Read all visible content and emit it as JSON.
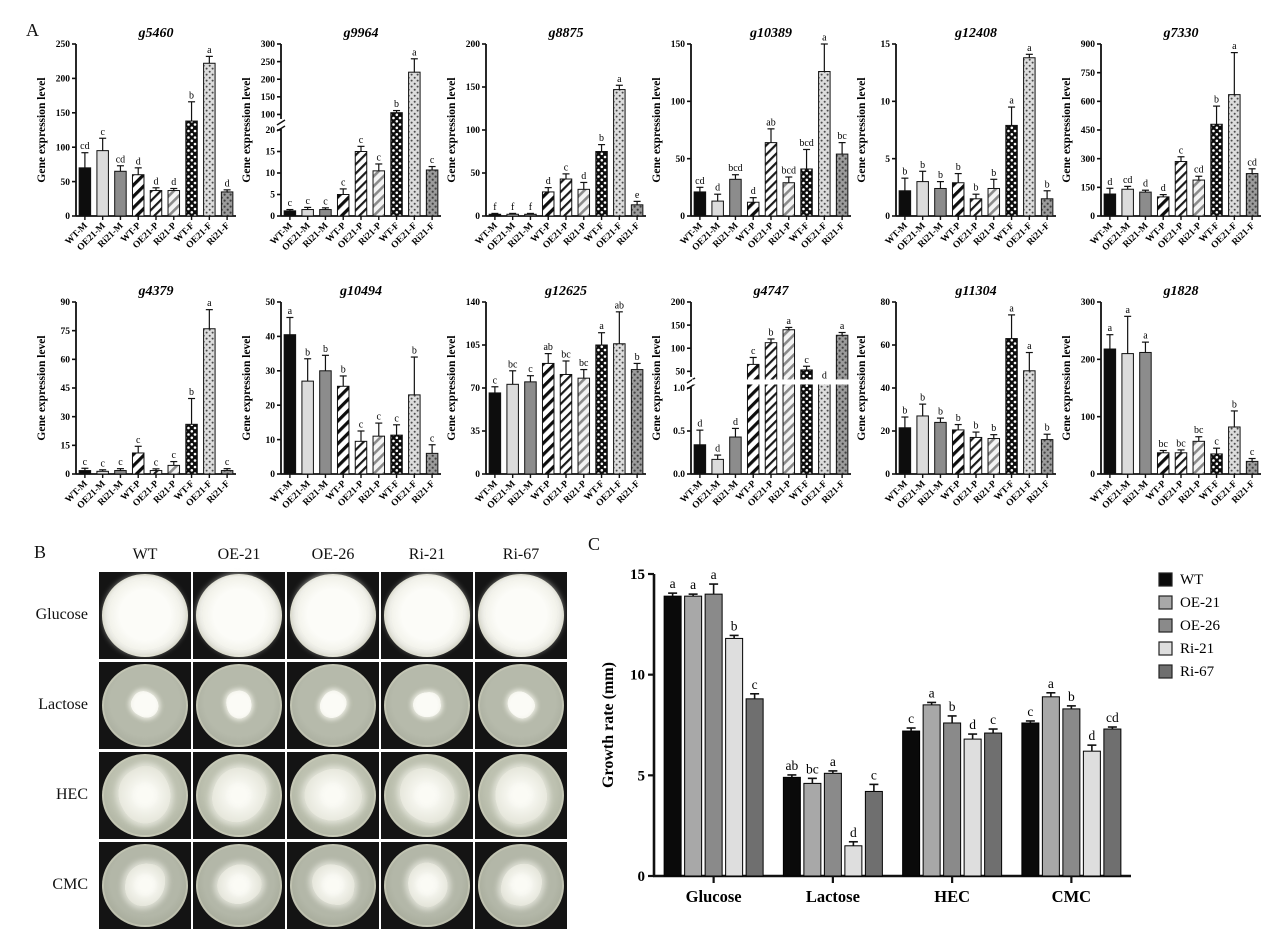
{
  "figure": {
    "panel_a_label": "A",
    "panel_b_label": "B",
    "panel_c_label": "C"
  },
  "gene_categories": [
    "WT-M",
    "OE21-M",
    "Ri21-M",
    "WT-P",
    "OE21-P",
    "Ri21-P",
    "WT-F",
    "OE21-F",
    "Ri21-F"
  ],
  "chart_data": [
    {
      "type": "bar",
      "title": "g5460",
      "ylabel": "Gene expression level",
      "ylim": [
        0,
        250
      ],
      "yticks": [
        0,
        50,
        100,
        150,
        200,
        250
      ],
      "values": [
        70,
        95,
        65,
        60,
        37,
        37,
        138,
        222,
        35
      ],
      "errors": [
        22,
        18,
        8,
        10,
        4,
        3,
        28,
        10,
        3
      ],
      "letters": [
        "cd",
        "c",
        "cd",
        "d",
        "d",
        "d",
        "b",
        "a",
        "d"
      ]
    },
    {
      "type": "bar",
      "title": "g9964",
      "ylabel": "Gene expression level",
      "axis_break": {
        "lower": [
          0,
          20
        ],
        "lower_ticks": [
          0,
          5,
          10,
          15,
          20
        ],
        "upper": [
          90,
          300
        ],
        "upper_ticks": [
          100,
          150,
          200,
          250,
          300
        ],
        "band": false
      },
      "values": [
        1.2,
        1.5,
        1.5,
        5,
        15,
        10.5,
        105,
        220,
        10.7
      ],
      "errors": [
        0.3,
        0.5,
        0.4,
        1.3,
        1.2,
        1.6,
        6,
        38,
        0.8
      ],
      "letters": [
        "c",
        "c",
        "c",
        "c",
        "c",
        "c",
        "b",
        "a",
        "c"
      ]
    },
    {
      "type": "bar",
      "title": "g8875",
      "ylabel": "Gene expression level",
      "ylim": [
        0,
        200
      ],
      "yticks": [
        0,
        50,
        100,
        150,
        200
      ],
      "values": [
        2,
        2,
        2,
        28,
        43,
        31,
        75,
        147,
        13
      ],
      "errors": [
        1,
        1,
        1,
        5,
        6,
        8,
        8,
        5,
        4
      ],
      "letters": [
        "f",
        "f",
        "f",
        "d",
        "c",
        "d",
        "b",
        "a",
        "e"
      ]
    },
    {
      "type": "bar",
      "title": "g10389",
      "ylabel": "Gene expression level",
      "ylim": [
        0,
        150
      ],
      "yticks": [
        0,
        50,
        100,
        150
      ],
      "values": [
        21,
        13,
        32,
        12,
        64,
        29,
        41,
        126,
        54
      ],
      "errors": [
        4,
        6,
        4,
        4,
        12,
        5,
        17,
        24,
        10
      ],
      "letters": [
        "cd",
        "d",
        "bcd",
        "d",
        "ab",
        "bcd",
        "bcd",
        "a",
        "bc"
      ]
    },
    {
      "type": "bar",
      "title": "g12408",
      "ylabel": "Gene expression level",
      "ylim": [
        0,
        15
      ],
      "yticks": [
        0,
        5,
        10,
        15
      ],
      "values": [
        2.2,
        3.0,
        2.4,
        2.9,
        1.5,
        2.4,
        7.9,
        13.8,
        1.5
      ],
      "errors": [
        1.1,
        0.9,
        0.6,
        0.8,
        0.4,
        0.8,
        1.6,
        0.3,
        0.7
      ],
      "letters": [
        "b",
        "b",
        "b",
        "b",
        "b",
        "b",
        "a",
        "a",
        "b"
      ]
    },
    {
      "type": "bar",
      "title": "g7330",
      "ylabel": "Gene expression level",
      "ylim": [
        0,
        900
      ],
      "yticks": [
        0,
        150,
        300,
        450,
        600,
        750,
        900
      ],
      "values": [
        115,
        140,
        125,
        100,
        285,
        188,
        480,
        635,
        222
      ],
      "errors": [
        30,
        15,
        10,
        12,
        25,
        20,
        95,
        220,
        25
      ],
      "letters": [
        "d",
        "cd",
        "d",
        "d",
        "c",
        "cd",
        "b",
        "a",
        "cd"
      ]
    },
    {
      "type": "bar",
      "title": "g4379",
      "ylabel": "Gene expression level",
      "ylim": [
        0,
        90
      ],
      "yticks": [
        0,
        15,
        30,
        45,
        60,
        75,
        90
      ],
      "values": [
        1.8,
        1.4,
        1.8,
        11,
        1.8,
        4.5,
        26,
        76,
        1.8
      ],
      "errors": [
        1.2,
        0.8,
        1.0,
        3.5,
        0.9,
        2.0,
        13.5,
        10,
        1.0
      ],
      "letters": [
        "c",
        "c",
        "c",
        "c",
        "c",
        "c",
        "b",
        "a",
        "c"
      ]
    },
    {
      "type": "bar",
      "title": "g10494",
      "ylabel": "Gene expression level",
      "ylim": [
        0,
        50
      ],
      "yticks": [
        0,
        10,
        20,
        30,
        40,
        50
      ],
      "values": [
        40.5,
        27,
        30,
        25.5,
        9.5,
        11,
        11.3,
        23,
        6
      ],
      "errors": [
        5,
        6.5,
        4.5,
        3,
        3,
        3.8,
        3,
        11,
        2.5
      ],
      "letters": [
        "a",
        "b",
        "b",
        "b",
        "c",
        "c",
        "c",
        "b",
        "c"
      ]
    },
    {
      "type": "bar",
      "title": "g12625",
      "ylabel": "Gene expression level",
      "ylim": [
        0,
        140
      ],
      "yticks": [
        0,
        35,
        70,
        105,
        140
      ],
      "values": [
        66,
        73,
        75,
        90,
        81,
        78,
        105,
        106,
        85
      ],
      "errors": [
        5,
        11,
        5,
        8,
        11,
        7,
        10,
        26,
        5
      ],
      "letters": [
        "c",
        "bc",
        "c",
        "ab",
        "bc",
        "bc",
        "a",
        "ab",
        "b"
      ]
    },
    {
      "type": "bar",
      "title": "g4747",
      "ylabel": "Gene expression level",
      "axis_break": {
        "lower": [
          0,
          1
        ],
        "lower_ticks": [
          "0.0",
          "0.5",
          "1.0"
        ],
        "upper": [
          40,
          200
        ],
        "upper_ticks": [
          50,
          100,
          150,
          200
        ],
        "band": true
      },
      "values": [
        0.34,
        0.17,
        0.43,
        65,
        112,
        140,
        53,
        1.5,
        128
      ],
      "errors": [
        0.17,
        0.05,
        0.1,
        15,
        8,
        5,
        8,
        0.3,
        6
      ],
      "letters": [
        "d",
        "d",
        "d",
        "c",
        "b",
        "a",
        "c",
        "d",
        "a"
      ]
    },
    {
      "type": "bar",
      "title": "g11304",
      "ylabel": "Gene expression level",
      "ylim": [
        0,
        80
      ],
      "yticks": [
        0,
        20,
        40,
        60,
        80
      ],
      "values": [
        21.5,
        27,
        24,
        20.5,
        17,
        16.5,
        63,
        48,
        16
      ],
      "errors": [
        5,
        5.5,
        2,
        2.5,
        2.5,
        1.8,
        11,
        8.5,
        2.5
      ],
      "letters": [
        "b",
        "b",
        "b",
        "b",
        "b",
        "b",
        "a",
        "a",
        "b"
      ]
    },
    {
      "type": "bar",
      "title": "g1828",
      "ylabel": "Gene expression level",
      "ylim": [
        0,
        300
      ],
      "yticks": [
        0,
        100,
        200,
        300
      ],
      "values": [
        218,
        210,
        212,
        37,
        37,
        57,
        35,
        82,
        22
      ],
      "errors": [
        25,
        65,
        18,
        4,
        5,
        8,
        10,
        28,
        5
      ],
      "letters": [
        "a",
        "a",
        "a",
        "bc",
        "bc",
        "bc",
        "c",
        "b",
        "c"
      ]
    },
    {
      "type": "grouped_bar",
      "title": "",
      "ylabel": "Growth rate (mm)",
      "ylim": [
        0,
        15
      ],
      "yticks": [
        0,
        5,
        10,
        15
      ],
      "categories": [
        "Glucose",
        "Lactose",
        "HEC",
        "CMC"
      ],
      "legend_position": "right",
      "series": [
        {
          "name": "WT",
          "color": "#0a0a0a",
          "values": [
            13.9,
            4.9,
            7.2,
            7.6
          ],
          "errors": [
            0.15,
            0.12,
            0.15,
            0.1
          ],
          "letters": [
            "a",
            "ab",
            "c",
            "c"
          ]
        },
        {
          "name": "OE-21",
          "color": "#a8a8a8",
          "values": [
            13.9,
            4.6,
            8.5,
            8.9
          ],
          "errors": [
            0.1,
            0.25,
            0.12,
            0.2
          ],
          "letters": [
            "a",
            "bc",
            "a",
            "a"
          ]
        },
        {
          "name": "OE-26",
          "color": "#8a8a8a",
          "values": [
            14.0,
            5.1,
            7.6,
            8.3
          ],
          "errors": [
            0.5,
            0.12,
            0.35,
            0.15
          ],
          "letters": [
            "a",
            "a",
            "b",
            "b"
          ]
        },
        {
          "name": "Ri-21",
          "color": "#dedede",
          "values": [
            11.8,
            1.5,
            6.8,
            6.2
          ],
          "errors": [
            0.15,
            0.2,
            0.25,
            0.3
          ],
          "letters": [
            "b",
            "d",
            "d",
            "d"
          ]
        },
        {
          "name": "Ri-67",
          "color": "#6f6f6f",
          "values": [
            8.8,
            4.2,
            7.1,
            7.3
          ],
          "errors": [
            0.25,
            0.35,
            0.2,
            0.1
          ],
          "letters": [
            "c",
            "c",
            "c",
            "cd"
          ]
        }
      ]
    }
  ],
  "panel_b": {
    "col_headers": [
      "WT",
      "OE-21",
      "OE-26",
      "Ri-21",
      "Ri-67"
    ],
    "row_labels": [
      "Glucose",
      "Lactose",
      "HEC",
      "CMC"
    ]
  }
}
